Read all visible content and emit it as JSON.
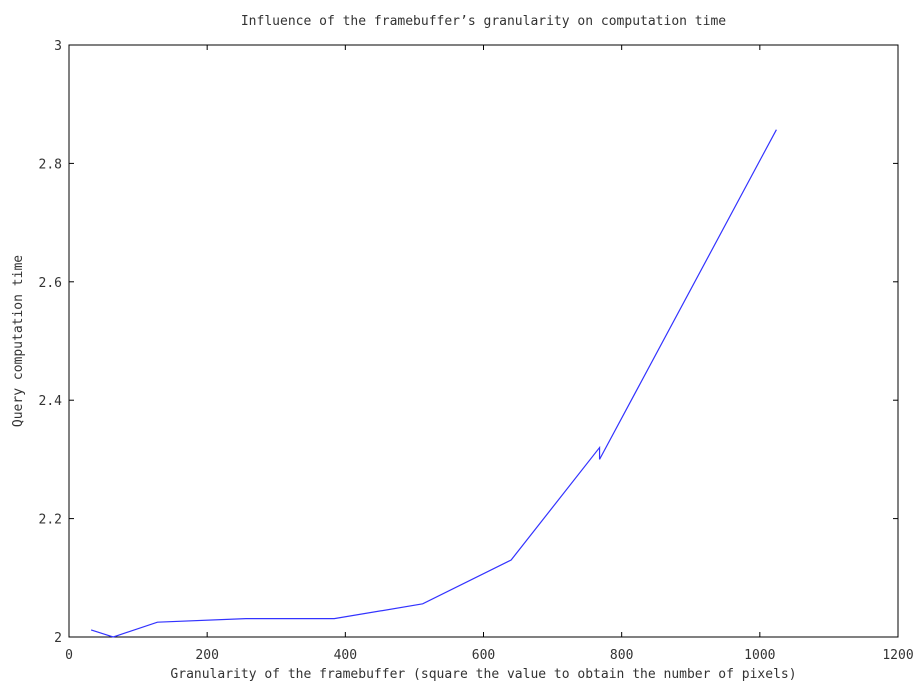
{
  "chart_data": {
    "type": "line",
    "title": "Influence of the framebuffer’s granularity on computation time",
    "xlabel": "Granularity of the framebuffer (square the value to obtain the number of pixels)",
    "ylabel": "Query computation time",
    "xlim": [
      0,
      1200
    ],
    "ylim": [
      2,
      3
    ],
    "xticks": [
      0,
      200,
      400,
      600,
      800,
      1000,
      1200
    ],
    "yticks": [
      2,
      2.2,
      2.4,
      2.6,
      2.8,
      3
    ],
    "xtick_labels": [
      "0",
      "200",
      "400",
      "600",
      "800",
      "1000",
      "1200"
    ],
    "ytick_labels": [
      "2",
      "2.2",
      "2.4",
      "2.6",
      "2.8",
      "3"
    ],
    "grid": false,
    "series": [
      {
        "color": "#3333ff",
        "x": [
          32,
          64,
          128,
          256,
          384,
          512,
          640,
          768,
          768,
          1024
        ],
        "y": [
          2.012,
          2.0,
          2.025,
          2.031,
          2.031,
          2.056,
          2.13,
          2.32,
          2.3,
          2.857
        ]
      }
    ]
  }
}
